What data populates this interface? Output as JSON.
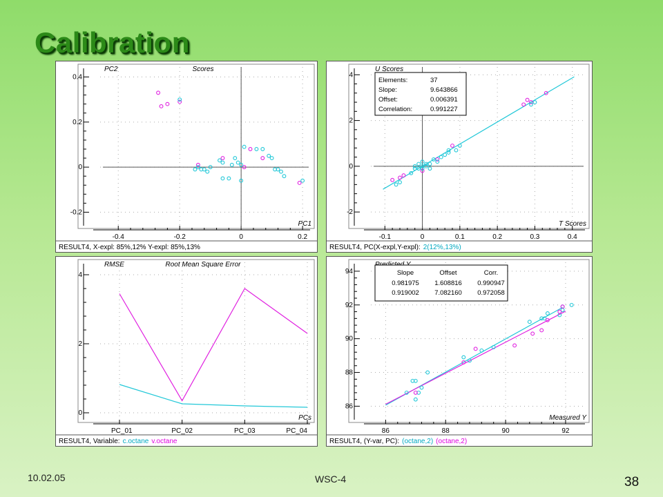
{
  "slide": {
    "title": "Calibration",
    "date": "10.02.05",
    "center_text": "WSC-4",
    "page_number": "38"
  },
  "colors": {
    "cyan": "#22c8d8",
    "magenta": "#e020e0",
    "text_cyan": "#00a8c0",
    "text_magenta": "#e000e0"
  },
  "chart_data": [
    {
      "type": "scatter",
      "panel_id": "scores",
      "title": "Scores",
      "ylabel": "PC2",
      "xlabel": "PC1",
      "xlim": [
        -0.45,
        0.22
      ],
      "ylim": [
        -0.26,
        0.42
      ],
      "xticks": [
        "-0.4",
        "-0.2",
        "0",
        "0.2"
      ],
      "xtick_values": [
        -0.4,
        -0.2,
        0,
        0.2
      ],
      "yticks": [
        "0.4",
        "0.2",
        "0",
        "-0.2"
      ],
      "ytick_values": [
        0.4,
        0.2,
        0,
        -0.2
      ],
      "grid": true,
      "crosshair": {
        "x": 0,
        "y": 0
      },
      "footer": {
        "prefix": "RESULT4, X-expl: 85%,12%  Y-expl: 85%,13%",
        "highlight": "",
        "highlight2": ""
      },
      "series": [
        {
          "color": "magenta",
          "points": [
            [
              -0.27,
              0.33
            ],
            [
              -0.26,
              0.27
            ],
            [
              -0.24,
              0.28
            ],
            [
              -0.2,
              0.29
            ],
            [
              -0.14,
              0.01
            ],
            [
              -0.06,
              0.04
            ],
            [
              0.03,
              0.08
            ],
            [
              0.07,
              0.04
            ],
            [
              0.19,
              -0.07
            ],
            [
              0.01,
              0.0
            ]
          ]
        },
        {
          "color": "cyan",
          "points": [
            [
              -0.2,
              0.3
            ],
            [
              -0.15,
              -0.01
            ],
            [
              -0.14,
              0.0
            ],
            [
              -0.13,
              -0.01
            ],
            [
              -0.12,
              -0.01
            ],
            [
              -0.11,
              -0.02
            ],
            [
              -0.1,
              0.0
            ],
            [
              -0.07,
              0.03
            ],
            [
              -0.06,
              0.02
            ],
            [
              -0.06,
              -0.05
            ],
            [
              -0.04,
              -0.05
            ],
            [
              -0.03,
              0.01
            ],
            [
              -0.02,
              0.04
            ],
            [
              -0.01,
              0.02
            ],
            [
              0.0,
              -0.06
            ],
            [
              0.0,
              0.01
            ],
            [
              0.01,
              0.09
            ],
            [
              0.05,
              0.08
            ],
            [
              0.07,
              0.08
            ],
            [
              0.09,
              0.05
            ],
            [
              0.1,
              0.04
            ],
            [
              0.11,
              -0.01
            ],
            [
              0.12,
              -0.01
            ],
            [
              0.13,
              -0.02
            ],
            [
              0.14,
              -0.04
            ],
            [
              0.2,
              -0.06
            ]
          ]
        }
      ]
    },
    {
      "type": "scatter",
      "panel_id": "uscores",
      "title": "",
      "ylabel": "U Scores",
      "xlabel": "T Scores",
      "xlim": [
        -0.13,
        0.43
      ],
      "ylim": [
        -2.6,
        4.1
      ],
      "xticks": [
        "-0.1",
        "0",
        "0.1",
        "0.2",
        "0.3",
        "0.4"
      ],
      "xtick_values": [
        -0.1,
        0,
        0.1,
        0.2,
        0.3,
        0.4
      ],
      "yticks": [
        "4",
        "2",
        "0",
        "-2"
      ],
      "ytick_values": [
        4,
        2,
        0,
        -2
      ],
      "grid": true,
      "crosshair": {
        "x": 0,
        "y": 0
      },
      "stats": [
        [
          "Elements:",
          "37"
        ],
        [
          "Slope:",
          "9.643866"
        ],
        [
          "Offset:",
          "0.006391"
        ],
        [
          "Correlation:",
          "0.991227"
        ]
      ],
      "regression": {
        "x0": -0.105,
        "x1": 0.405,
        "slope": 9.643866,
        "offset": 0.006391
      },
      "footer": {
        "prefix": "RESULT4, PC(X-expl,Y-expl):",
        "highlight": "2(12%,13%)",
        "highlight2": ""
      },
      "series": [
        {
          "color": "magenta",
          "points": [
            [
              -0.08,
              -0.6
            ],
            [
              -0.06,
              -0.5
            ],
            [
              -0.05,
              -0.4
            ],
            [
              0.0,
              -0.2
            ],
            [
              0.04,
              0.3
            ],
            [
              0.08,
              0.9
            ],
            [
              0.27,
              2.7
            ],
            [
              0.28,
              2.9
            ],
            [
              0.29,
              2.8
            ],
            [
              0.33,
              3.2
            ]
          ]
        },
        {
          "color": "cyan",
          "points": [
            [
              -0.07,
              -0.8
            ],
            [
              -0.06,
              -0.7
            ],
            [
              -0.03,
              -0.3
            ],
            [
              -0.02,
              -0.1
            ],
            [
              -0.02,
              0.0
            ],
            [
              -0.01,
              -0.1
            ],
            [
              -0.01,
              0.1
            ],
            [
              0.0,
              0.0
            ],
            [
              0.0,
              0.2
            ],
            [
              0.0,
              -0.1
            ],
            [
              0.01,
              0.1
            ],
            [
              0.01,
              0.0
            ],
            [
              0.02,
              0.1
            ],
            [
              0.02,
              -0.1
            ],
            [
              0.03,
              0.3
            ],
            [
              0.04,
              0.2
            ],
            [
              0.05,
              0.4
            ],
            [
              0.06,
              0.5
            ],
            [
              0.07,
              0.7
            ],
            [
              0.07,
              0.6
            ],
            [
              0.09,
              0.7
            ],
            [
              0.1,
              0.9
            ],
            [
              0.29,
              2.7
            ],
            [
              0.3,
              2.8
            ]
          ]
        }
      ]
    },
    {
      "type": "line",
      "panel_id": "rmse",
      "title": "Root Mean Square Error",
      "ylabel": "RMSE",
      "xlabel": "PCs",
      "categories": [
        "PC_01",
        "PC_02",
        "PC_03",
        "PC_04"
      ],
      "ylim": [
        -0.2,
        4.2
      ],
      "yticks": [
        "4",
        "2",
        "0"
      ],
      "ytick_values": [
        4,
        2,
        0
      ],
      "grid": true,
      "footer": {
        "prefix": "RESULT4, Variable:",
        "highlight": "c.octane",
        "highlight2": "v.octane"
      },
      "series": [
        {
          "name": "c.octane",
          "color": "cyan",
          "values": [
            0.82,
            0.26,
            0.2,
            0.16
          ]
        },
        {
          "name": "v.octane",
          "color": "magenta",
          "values": [
            3.45,
            0.35,
            3.6,
            2.3
          ]
        }
      ]
    },
    {
      "type": "scatter",
      "panel_id": "predicted",
      "title": "",
      "ylabel": "Predicted Y",
      "xlabel": "Measured Y",
      "xlim": [
        85.6,
        92.6
      ],
      "ylim": [
        85.2,
        94.2
      ],
      "xticks": [
        "86",
        "88",
        "90",
        "92"
      ],
      "xtick_values": [
        86,
        88,
        90,
        92
      ],
      "yticks": [
        "94",
        "92",
        "90",
        "88",
        "86"
      ],
      "ytick_values": [
        94,
        92,
        90,
        88,
        86
      ],
      "grid": true,
      "table": {
        "headers": [
          "Slope",
          "Offset",
          "Corr."
        ],
        "rows": [
          {
            "color": "cyan",
            "cells": [
              "0.981975",
              "1.608816",
              "0.990947"
            ]
          },
          {
            "color": "magenta",
            "cells": [
              "0.919002",
              "7.082160",
              "0.972058"
            ]
          }
        ]
      },
      "regressions": [
        {
          "color": "cyan",
          "slope": 0.981975,
          "offset": 1.608816,
          "x0": 86.0,
          "x1": 91.9
        },
        {
          "color": "magenta",
          "slope": 0.919002,
          "offset": 7.08216,
          "x0": 86.0,
          "x1": 92.0
        }
      ],
      "footer": {
        "prefix": "RESULT4, (Y-var, PC):",
        "highlight": "(octane,2)",
        "highlight2": "(octane,2)"
      },
      "series": [
        {
          "color": "cyan",
          "points": [
            [
              86.7,
              86.8
            ],
            [
              86.9,
              87.5
            ],
            [
              87.0,
              87.5
            ],
            [
              87.0,
              86.4
            ],
            [
              87.1,
              86.8
            ],
            [
              87.2,
              87.1
            ],
            [
              87.4,
              88.0
            ],
            [
              88.6,
              88.9
            ],
            [
              88.8,
              88.7
            ],
            [
              89.2,
              89.3
            ],
            [
              89.6,
              89.5
            ],
            [
              90.8,
              91.0
            ],
            [
              91.2,
              91.2
            ],
            [
              91.3,
              91.2
            ],
            [
              91.4,
              91.5
            ],
            [
              91.8,
              91.4
            ],
            [
              91.9,
              91.7
            ],
            [
              91.9,
              91.9
            ],
            [
              92.2,
              92.0
            ]
          ]
        },
        {
          "color": "magenta",
          "points": [
            [
              87.0,
              86.8
            ],
            [
              88.6,
              88.6
            ],
            [
              89.0,
              89.4
            ],
            [
              90.3,
              89.6
            ],
            [
              90.9,
              90.3
            ],
            [
              91.2,
              90.5
            ],
            [
              91.4,
              91.1
            ],
            [
              91.8,
              91.6
            ],
            [
              91.9,
              91.9
            ]
          ]
        }
      ]
    }
  ]
}
